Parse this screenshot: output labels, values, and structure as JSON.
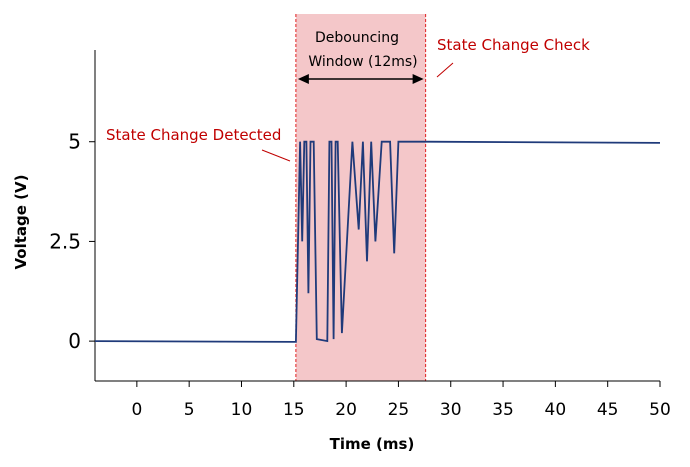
{
  "chart_data": {
    "type": "line",
    "title": "",
    "xlabel": "Time (ms)",
    "ylabel": "Voltage (V)",
    "xlim": [
      -4,
      50
    ],
    "ylim": [
      -1,
      7.3
    ],
    "xticks": [
      0,
      5,
      10,
      15,
      20,
      25,
      30,
      35,
      40,
      45,
      50
    ],
    "yticks": [
      0,
      2.5,
      5
    ],
    "ytick_labels": [
      "0",
      "2.5",
      "5"
    ],
    "grid": false,
    "series": [
      {
        "color": "#1f3a7a",
        "x": [
          -4,
          15.2,
          15.6,
          15.8,
          16.0,
          16.2,
          16.4,
          16.6,
          16.9,
          17.2,
          18.2,
          18.4,
          18.6,
          18.8,
          19.0,
          19.2,
          19.6,
          20.6,
          21.2,
          21.6,
          22.0,
          22.4,
          22.8,
          23.4,
          23.8,
          24.2,
          24.6,
          25.0,
          25.8,
          27.6,
          50
        ],
        "y": [
          0,
          -0.02,
          5,
          2.5,
          5,
          5,
          1.2,
          5,
          5,
          0.05,
          0,
          5,
          5,
          0.05,
          5,
          5,
          0.2,
          5,
          2.8,
          5,
          2.0,
          5,
          2.5,
          5,
          5,
          5,
          2.2,
          5,
          5,
          5,
          4.97
        ]
      }
    ]
  },
  "window": {
    "start": 15.2,
    "end": 27.6,
    "fill": "#f4c7c9",
    "line_color": "#e02020"
  },
  "annotations": {
    "detected": "State Change Detected",
    "check": "State Change Check",
    "window_line1": "Debouncing",
    "window_line2": "Window (12ms)",
    "color": "#c00000"
  }
}
